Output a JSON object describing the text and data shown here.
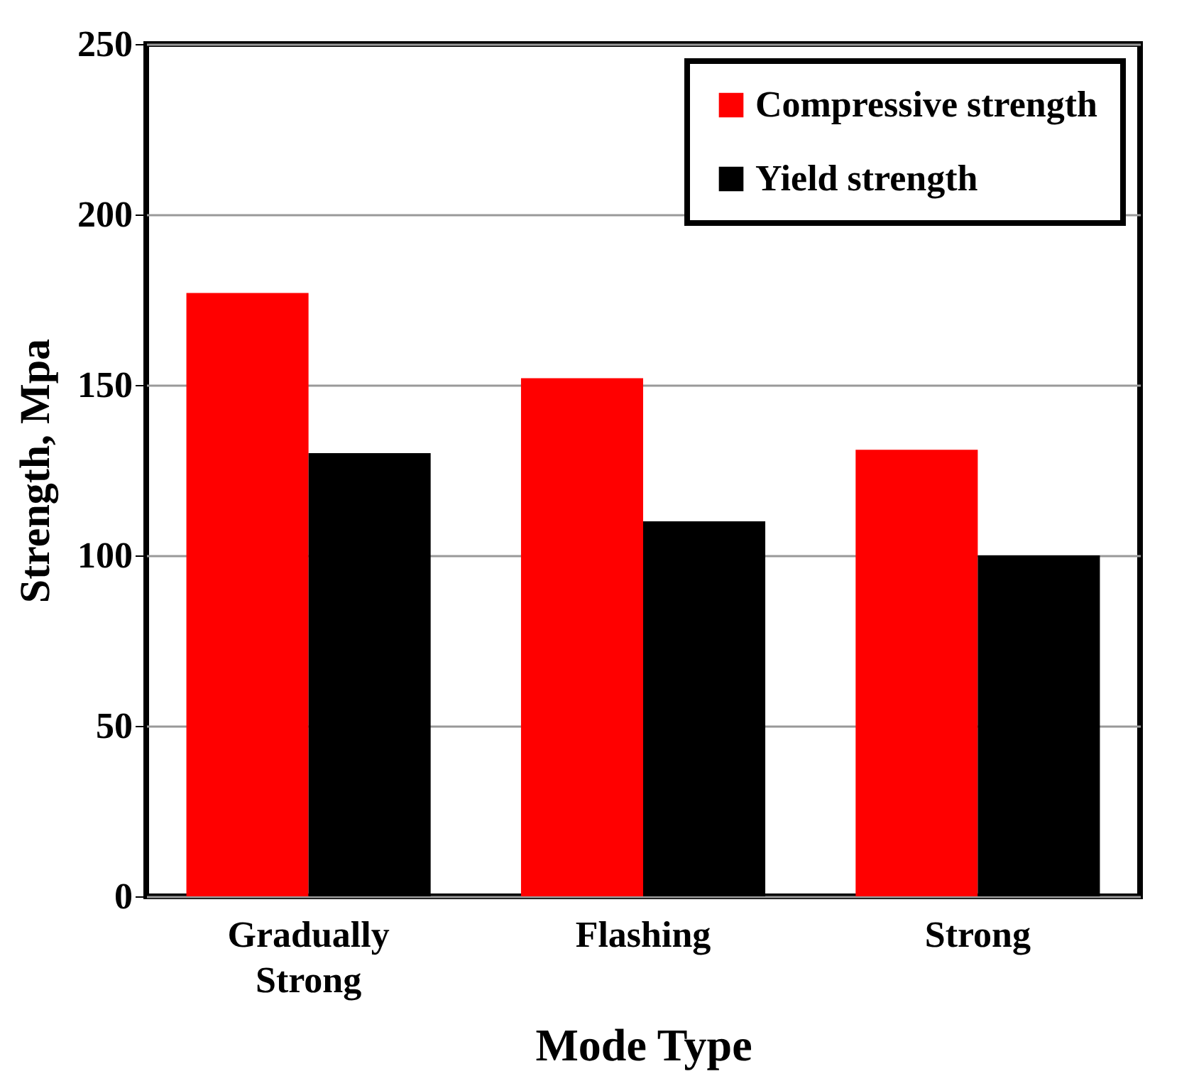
{
  "chart_data": {
    "type": "bar",
    "xlabel": "Mode Type",
    "ylabel": "Strength, Mpa",
    "categories": [
      "Gradually Strong",
      "Flashing",
      "Strong"
    ],
    "series": [
      {
        "name": "Compressive strength",
        "color": "#ff0000",
        "values": [
          177,
          152,
          131
        ]
      },
      {
        "name": "Yield strength",
        "color": "#000000",
        "values": [
          130,
          110,
          100
        ]
      }
    ],
    "ylim": [
      0,
      250
    ],
    "yticks": [
      0,
      50,
      100,
      150,
      200,
      250
    ],
    "grid": "y",
    "legend": "top right"
  }
}
